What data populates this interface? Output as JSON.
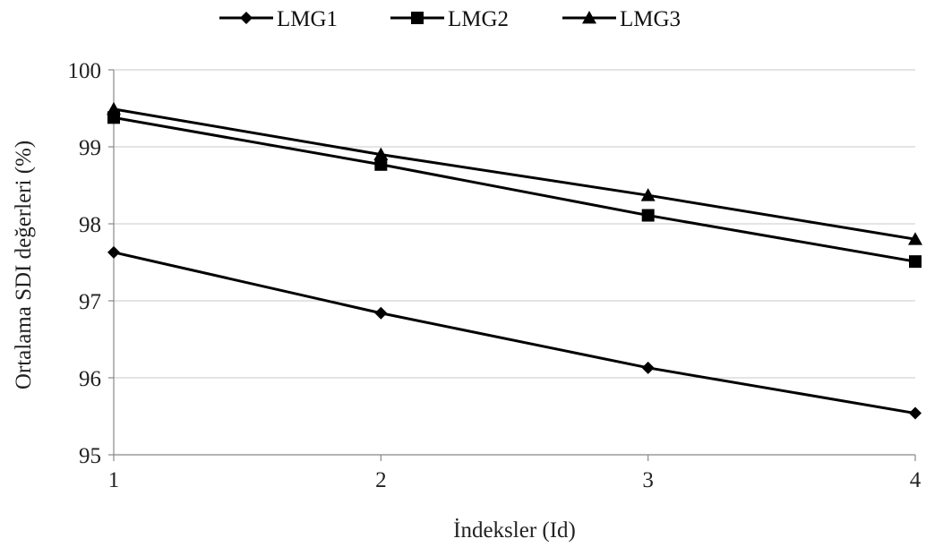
{
  "chart_data": {
    "type": "line",
    "title": "",
    "xlabel": "İndeksler (Id)",
    "ylabel": "Ortalama SDI değerleri (%)",
    "x": [
      1,
      2,
      3,
      4
    ],
    "xticks": [
      "1",
      "2",
      "3",
      "4"
    ],
    "ylim": [
      95,
      100
    ],
    "yticks": [
      "95",
      "96",
      "97",
      "98",
      "99",
      "100"
    ],
    "grid": "horizontal",
    "legend": "top-center",
    "series": [
      {
        "name": "LMG1",
        "marker": "diamond",
        "values": [
          97.63,
          96.84,
          96.13,
          95.54
        ]
      },
      {
        "name": "LMG2",
        "marker": "square",
        "values": [
          99.38,
          98.77,
          98.11,
          97.51
        ]
      },
      {
        "name": "LMG3",
        "marker": "triangle",
        "values": [
          99.49,
          98.9,
          98.37,
          97.8
        ]
      }
    ],
    "colors": {
      "line": "#000000",
      "grid": "#c8c8c8",
      "axis": "#888888"
    }
  }
}
